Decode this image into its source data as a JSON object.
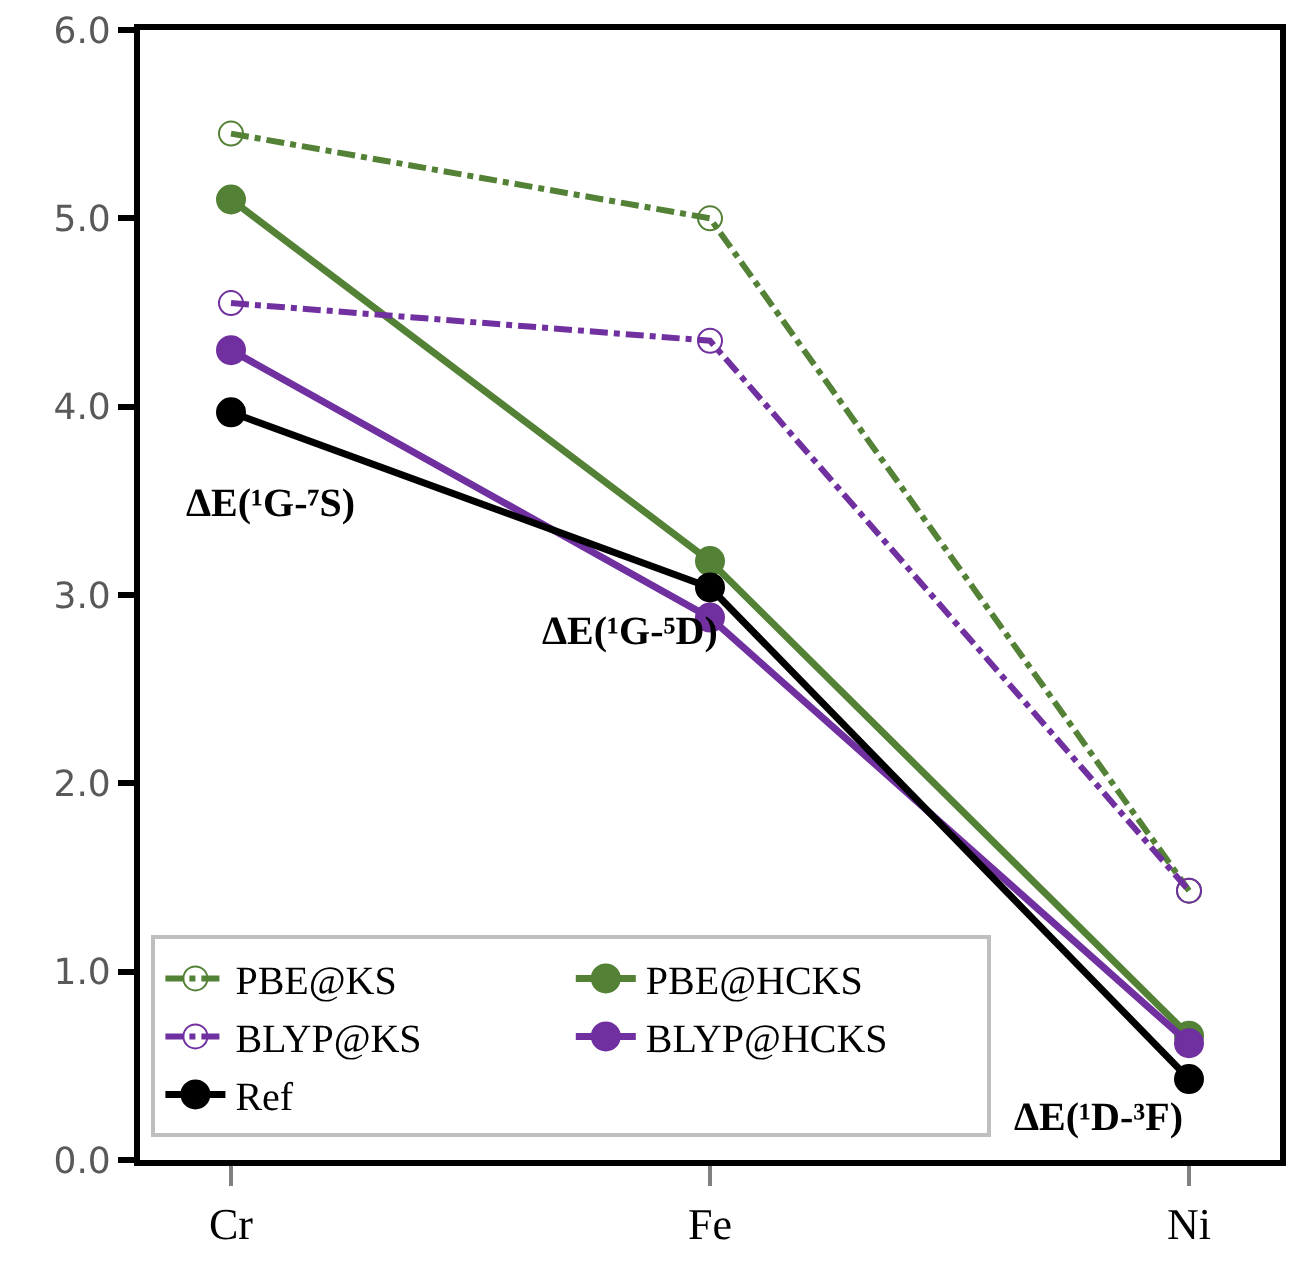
{
  "chart_data": {
    "type": "line",
    "categories": [
      "Cr",
      "Fe",
      "Ni"
    ],
    "series": [
      {
        "name": "PBE@KS",
        "color": "#538135",
        "values": [
          5.45,
          5.0,
          1.43
        ],
        "line_style": "dashdot",
        "marker": "circle-open"
      },
      {
        "name": "PBE@HCKS",
        "color": "#538135",
        "values": [
          5.1,
          3.18,
          0.66
        ],
        "line_style": "solid",
        "marker": "circle"
      },
      {
        "name": "BLYP@KS",
        "color": "#7030a0",
        "values": [
          4.55,
          4.35,
          1.43
        ],
        "line_style": "dashdot",
        "marker": "circle-open"
      },
      {
        "name": "BLYP@HCKS",
        "color": "#7030a0",
        "values": [
          4.3,
          2.88,
          0.62
        ],
        "line_style": "solid",
        "marker": "circle"
      },
      {
        "name": "Ref",
        "color": "#000000",
        "values": [
          3.97,
          3.04,
          0.43
        ],
        "line_style": "solid",
        "marker": "circle"
      }
    ],
    "ylim": [
      0,
      6
    ],
    "yticks": [
      {
        "value": 0,
        "label": "0.0"
      },
      {
        "value": 1,
        "label": "1.0"
      },
      {
        "value": 2,
        "label": "2.0"
      },
      {
        "value": 3,
        "label": "3.0"
      },
      {
        "value": 4,
        "label": "4.0"
      },
      {
        "value": 5,
        "label": "5.0"
      },
      {
        "value": 6,
        "label": "6.0"
      }
    ],
    "legend": "bottom left",
    "annotations": [
      {
        "text": "ΔE(¹G-⁷S)",
        "x": "Cr",
        "y": 3.97
      },
      {
        "text": "ΔE(¹G-⁵D)",
        "x": "Fe",
        "y": 3.04
      },
      {
        "text": "ΔE(¹D-³F)",
        "x": "Ni",
        "y": 0.43
      }
    ]
  }
}
